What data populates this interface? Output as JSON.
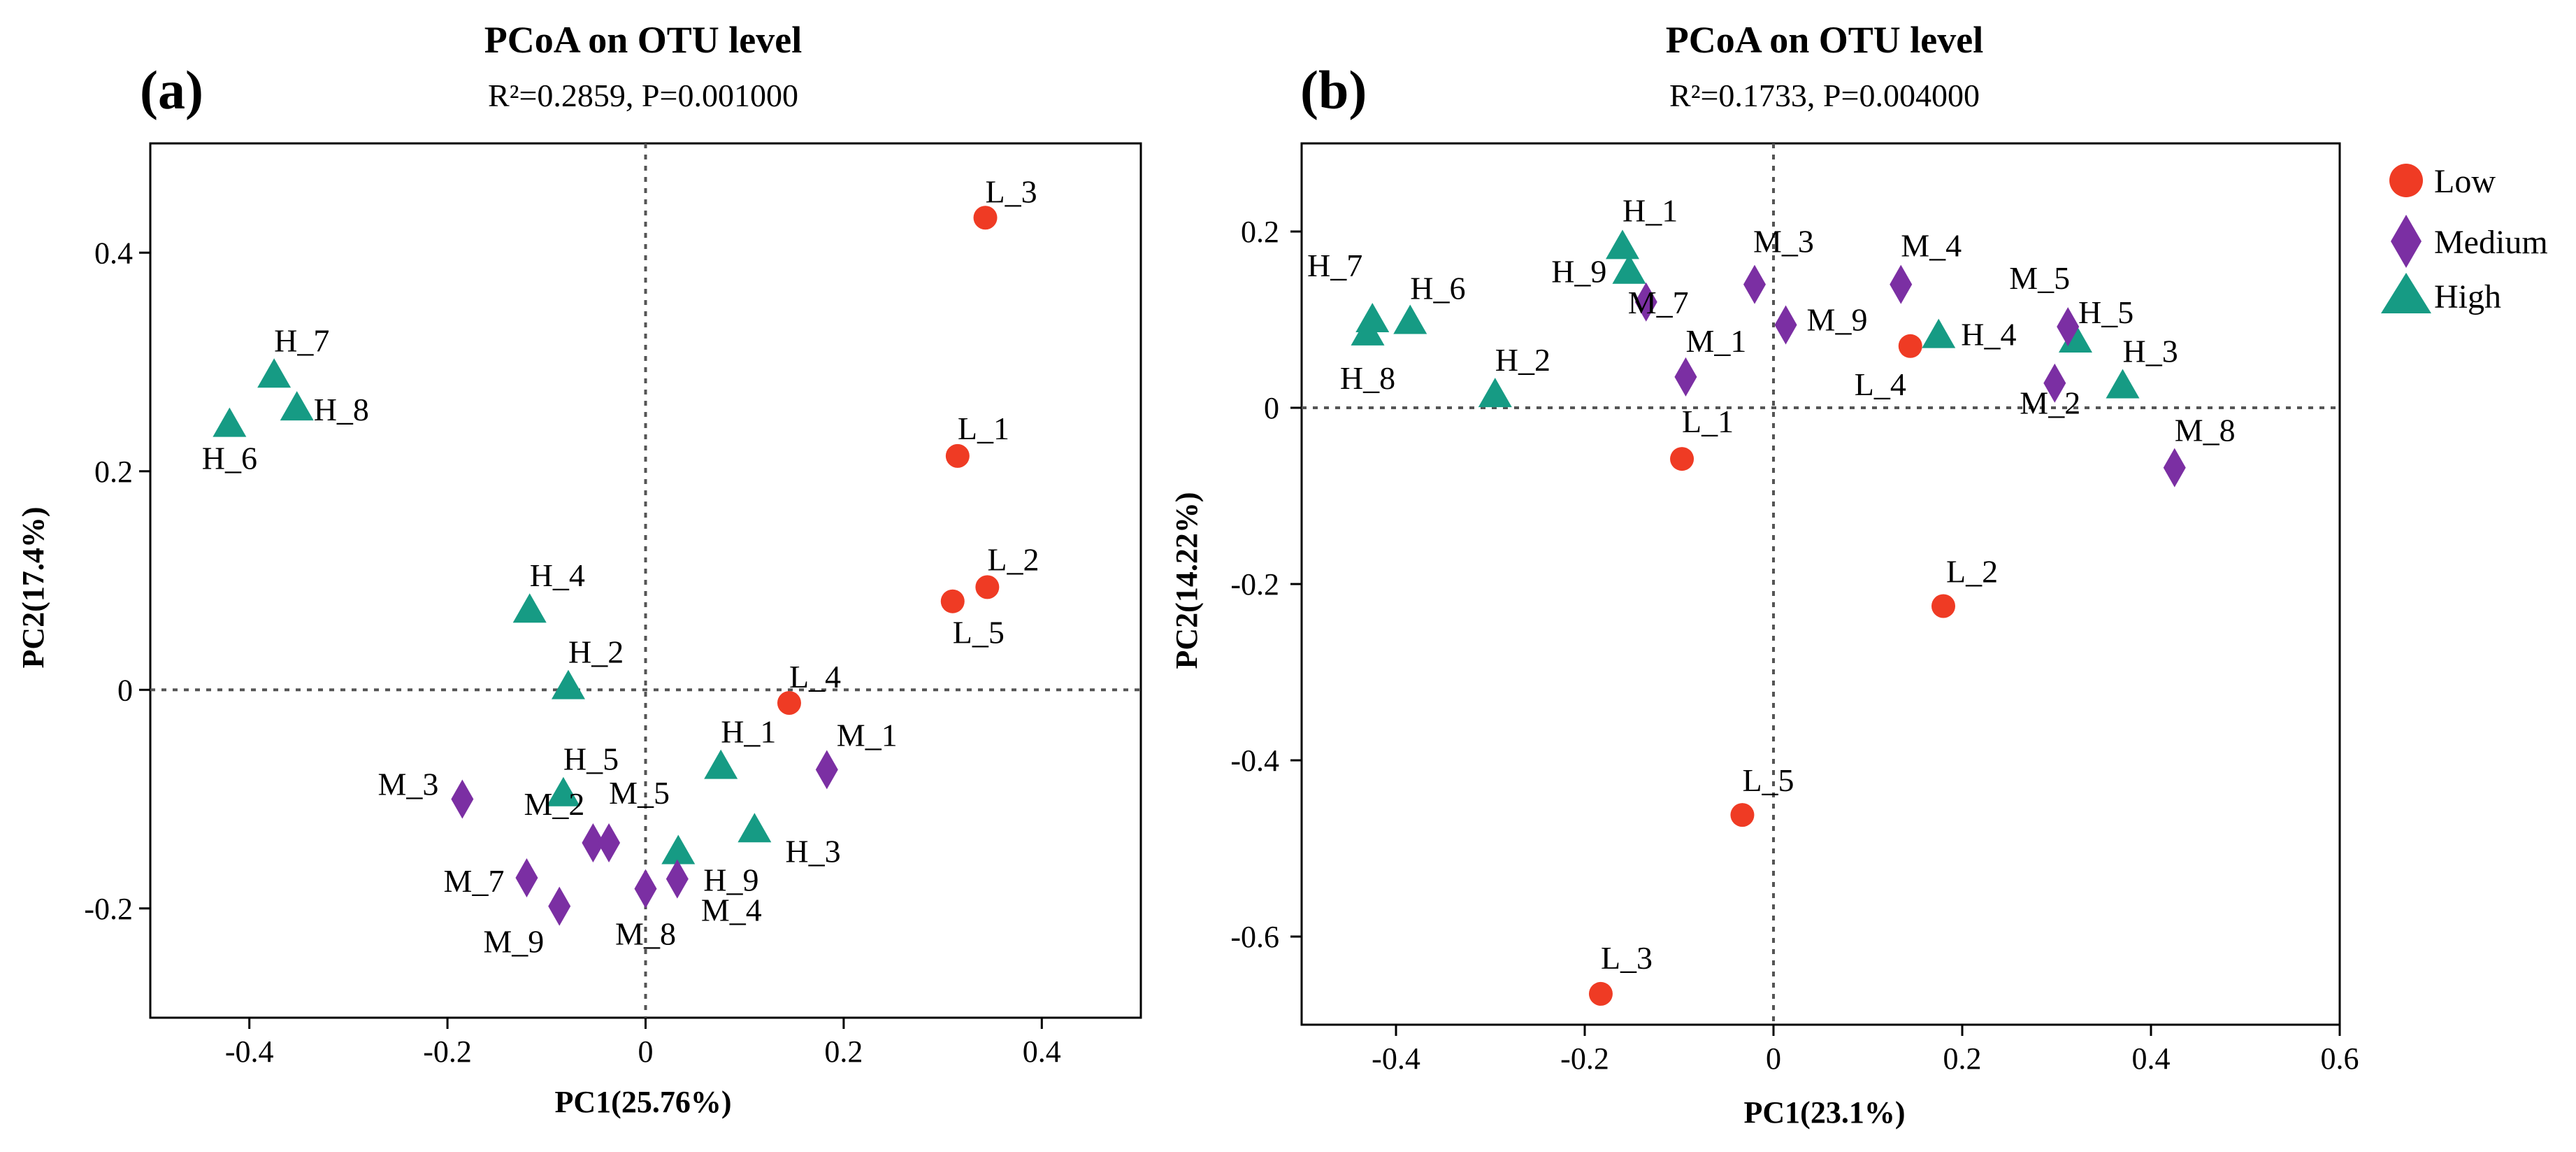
{
  "colors": {
    "Low": "#ef3b24",
    "Medium": "#7b2fa3",
    "High": "#169b84"
  },
  "legend": {
    "items": [
      {
        "group": "Low",
        "label": "Low",
        "shape": "circle"
      },
      {
        "group": "Medium",
        "label": "Medium",
        "shape": "diamond"
      },
      {
        "group": "High",
        "label": "High",
        "shape": "triangle"
      }
    ]
  },
  "chart_data": [
    {
      "type": "scatter",
      "panel_label": "(a)",
      "title": "PCoA on OTU level",
      "subtitle": "R²=0.2859, P=0.001000",
      "xlabel": "PC1(25.76%)",
      "ylabel": "PC2(17.4%)",
      "xlim": [
        -0.5,
        0.5
      ],
      "ylim": [
        -0.3,
        0.5
      ],
      "xticks": [
        -0.4,
        -0.2,
        0,
        0.2,
        0.4
      ],
      "xtick_labels": [
        "-0.4",
        "-0.2",
        "0",
        "0.2",
        "0.4"
      ],
      "yticks": [
        -0.2,
        0,
        0.2,
        0.4
      ],
      "ytick_labels": [
        "-0.2",
        "0",
        "0.2",
        "0.4"
      ],
      "points": [
        {
          "label": "L_3",
          "group": "Low",
          "x": 0.343,
          "y": 0.432
        },
        {
          "label": "L_1",
          "group": "Low",
          "x": 0.315,
          "y": 0.214
        },
        {
          "label": "L_2",
          "group": "Low",
          "x": 0.345,
          "y": 0.094
        },
        {
          "label": "L_5",
          "group": "Low",
          "x": 0.31,
          "y": 0.081
        },
        {
          "label": "L_4",
          "group": "Low",
          "x": 0.145,
          "y": -0.012
        },
        {
          "label": "H_7",
          "group": "High",
          "x": -0.375,
          "y": 0.288
        },
        {
          "label": "H_8",
          "group": "High",
          "x": -0.352,
          "y": 0.258
        },
        {
          "label": "H_6",
          "group": "High",
          "x": -0.42,
          "y": 0.243
        },
        {
          "label": "H_4",
          "group": "High",
          "x": -0.117,
          "y": 0.073
        },
        {
          "label": "H_2",
          "group": "High",
          "x": -0.078,
          "y": 0.003
        },
        {
          "label": "H_1",
          "group": "High",
          "x": 0.076,
          "y": -0.07
        },
        {
          "label": "H_5",
          "group": "High",
          "x": -0.083,
          "y": -0.095
        },
        {
          "label": "H_3",
          "group": "High",
          "x": 0.11,
          "y": -0.128
        },
        {
          "label": "H_9",
          "group": "High",
          "x": 0.033,
          "y": -0.148
        },
        {
          "label": "M_1",
          "group": "Medium",
          "x": 0.183,
          "y": -0.073
        },
        {
          "label": "M_3",
          "group": "Medium",
          "x": -0.185,
          "y": -0.1
        },
        {
          "label": "M_2",
          "group": "Medium",
          "x": -0.053,
          "y": -0.14
        },
        {
          "label": "M_5",
          "group": "Medium",
          "x": -0.037,
          "y": -0.14
        },
        {
          "label": "M_7",
          "group": "Medium",
          "x": -0.12,
          "y": -0.172
        },
        {
          "label": "M_9",
          "group": "Medium",
          "x": -0.087,
          "y": -0.198
        },
        {
          "label": "M_4",
          "group": "Medium",
          "x": 0.032,
          "y": -0.173
        },
        {
          "label": "M_8",
          "group": "Medium",
          "x": 0.0,
          "y": -0.182
        }
      ]
    },
    {
      "type": "scatter",
      "panel_label": "(b)",
      "title": "PCoA on OTU level",
      "subtitle": "R²=0.1733, P=0.004000",
      "xlabel": "PC1(23.1%)",
      "ylabel": "PC2(14.22%)",
      "xlim": [
        -0.5,
        0.6
      ],
      "ylim": [
        -0.7,
        0.3
      ],
      "xticks": [
        -0.4,
        -0.2,
        0,
        0.2,
        0.4,
        0.6
      ],
      "xtick_labels": [
        "-0.4",
        "-0.2",
        "0",
        "0.2",
        "0.4",
        "0.6"
      ],
      "yticks": [
        -0.6,
        -0.4,
        -0.2,
        0,
        0.2
      ],
      "ytick_labels": [
        "-0.6",
        "-0.4",
        "-0.2",
        "0",
        "0.2"
      ],
      "points": [
        {
          "label": "H_1",
          "group": "High",
          "x": -0.16,
          "y": 0.183
        },
        {
          "label": "H_9",
          "group": "High",
          "x": -0.153,
          "y": 0.155
        },
        {
          "label": "H_7",
          "group": "High",
          "x": -0.425,
          "y": 0.1
        },
        {
          "label": "H_8",
          "group": "High",
          "x": -0.43,
          "y": 0.085
        },
        {
          "label": "H_6",
          "group": "High",
          "x": -0.385,
          "y": 0.098
        },
        {
          "label": "H_2",
          "group": "High",
          "x": -0.295,
          "y": 0.015
        },
        {
          "label": "H_4",
          "group": "High",
          "x": 0.175,
          "y": 0.082
        },
        {
          "label": "H_5",
          "group": "High",
          "x": 0.32,
          "y": 0.077
        },
        {
          "label": "H_3",
          "group": "High",
          "x": 0.37,
          "y": 0.025
        },
        {
          "label": "M_3",
          "group": "Medium",
          "x": -0.02,
          "y": 0.14
        },
        {
          "label": "M_7",
          "group": "Medium",
          "x": -0.135,
          "y": 0.12
        },
        {
          "label": "M_9",
          "group": "Medium",
          "x": 0.013,
          "y": 0.094
        },
        {
          "label": "M_1",
          "group": "Medium",
          "x": -0.093,
          "y": 0.035
        },
        {
          "label": "M_4",
          "group": "Medium",
          "x": 0.135,
          "y": 0.14
        },
        {
          "label": "M_5",
          "group": "Medium",
          "x": 0.312,
          "y": 0.092
        },
        {
          "label": "M_2",
          "group": "Medium",
          "x": 0.298,
          "y": 0.028
        },
        {
          "label": "M_8",
          "group": "Medium",
          "x": 0.425,
          "y": -0.068
        },
        {
          "label": "L_4",
          "group": "Low",
          "x": 0.145,
          "y": 0.07
        },
        {
          "label": "L_1",
          "group": "Low",
          "x": -0.097,
          "y": -0.058
        },
        {
          "label": "L_2",
          "group": "Low",
          "x": 0.18,
          "y": -0.225
        },
        {
          "label": "L_5",
          "group": "Low",
          "x": -0.033,
          "y": -0.462
        },
        {
          "label": "L_3",
          "group": "Low",
          "x": -0.183,
          "y": -0.665
        }
      ]
    }
  ]
}
